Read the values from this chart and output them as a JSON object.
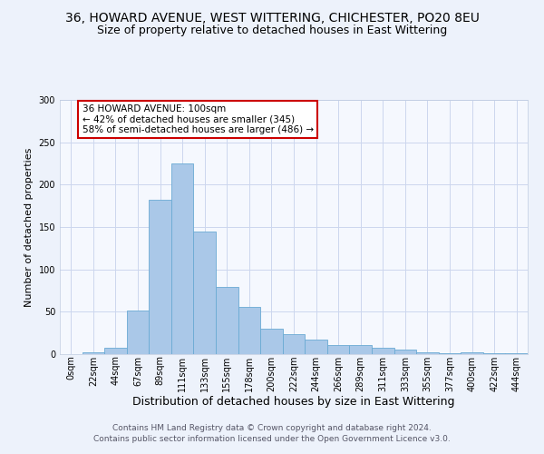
{
  "title": "36, HOWARD AVENUE, WEST WITTERING, CHICHESTER, PO20 8EU",
  "subtitle": "Size of property relative to detached houses in East Wittering",
  "xlabel": "Distribution of detached houses by size in East Wittering",
  "ylabel": "Number of detached properties",
  "bar_values": [
    0,
    2,
    7,
    51,
    182,
    225,
    145,
    79,
    56,
    30,
    24,
    17,
    11,
    11,
    7,
    5,
    2,
    1,
    2,
    1,
    1
  ],
  "bin_labels": [
    "0sqm",
    "22sqm",
    "44sqm",
    "67sqm",
    "89sqm",
    "111sqm",
    "133sqm",
    "155sqm",
    "178sqm",
    "200sqm",
    "222sqm",
    "244sqm",
    "266sqm",
    "289sqm",
    "311sqm",
    "333sqm",
    "355sqm",
    "377sqm",
    "400sqm",
    "422sqm",
    "444sqm"
  ],
  "bar_color": "#aac8e8",
  "bar_edge_color": "#6aaad4",
  "annotation_text": "36 HOWARD AVENUE: 100sqm\n← 42% of detached houses are smaller (345)\n58% of semi-detached houses are larger (486) →",
  "annotation_box_color": "#ffffff",
  "annotation_box_edge_color": "#cc0000",
  "ylim": [
    0,
    300
  ],
  "yticks": [
    0,
    50,
    100,
    150,
    200,
    250,
    300
  ],
  "bg_color": "#edf2fb",
  "plot_bg_color": "#f5f8fe",
  "grid_color": "#ccd6ee",
  "footer": "Contains HM Land Registry data © Crown copyright and database right 2024.\nContains public sector information licensed under the Open Government Licence v3.0.",
  "title_fontsize": 10,
  "subtitle_fontsize": 9,
  "xlabel_fontsize": 9,
  "ylabel_fontsize": 8,
  "tick_fontsize": 7,
  "annotation_fontsize": 7.5,
  "footer_fontsize": 6.5
}
